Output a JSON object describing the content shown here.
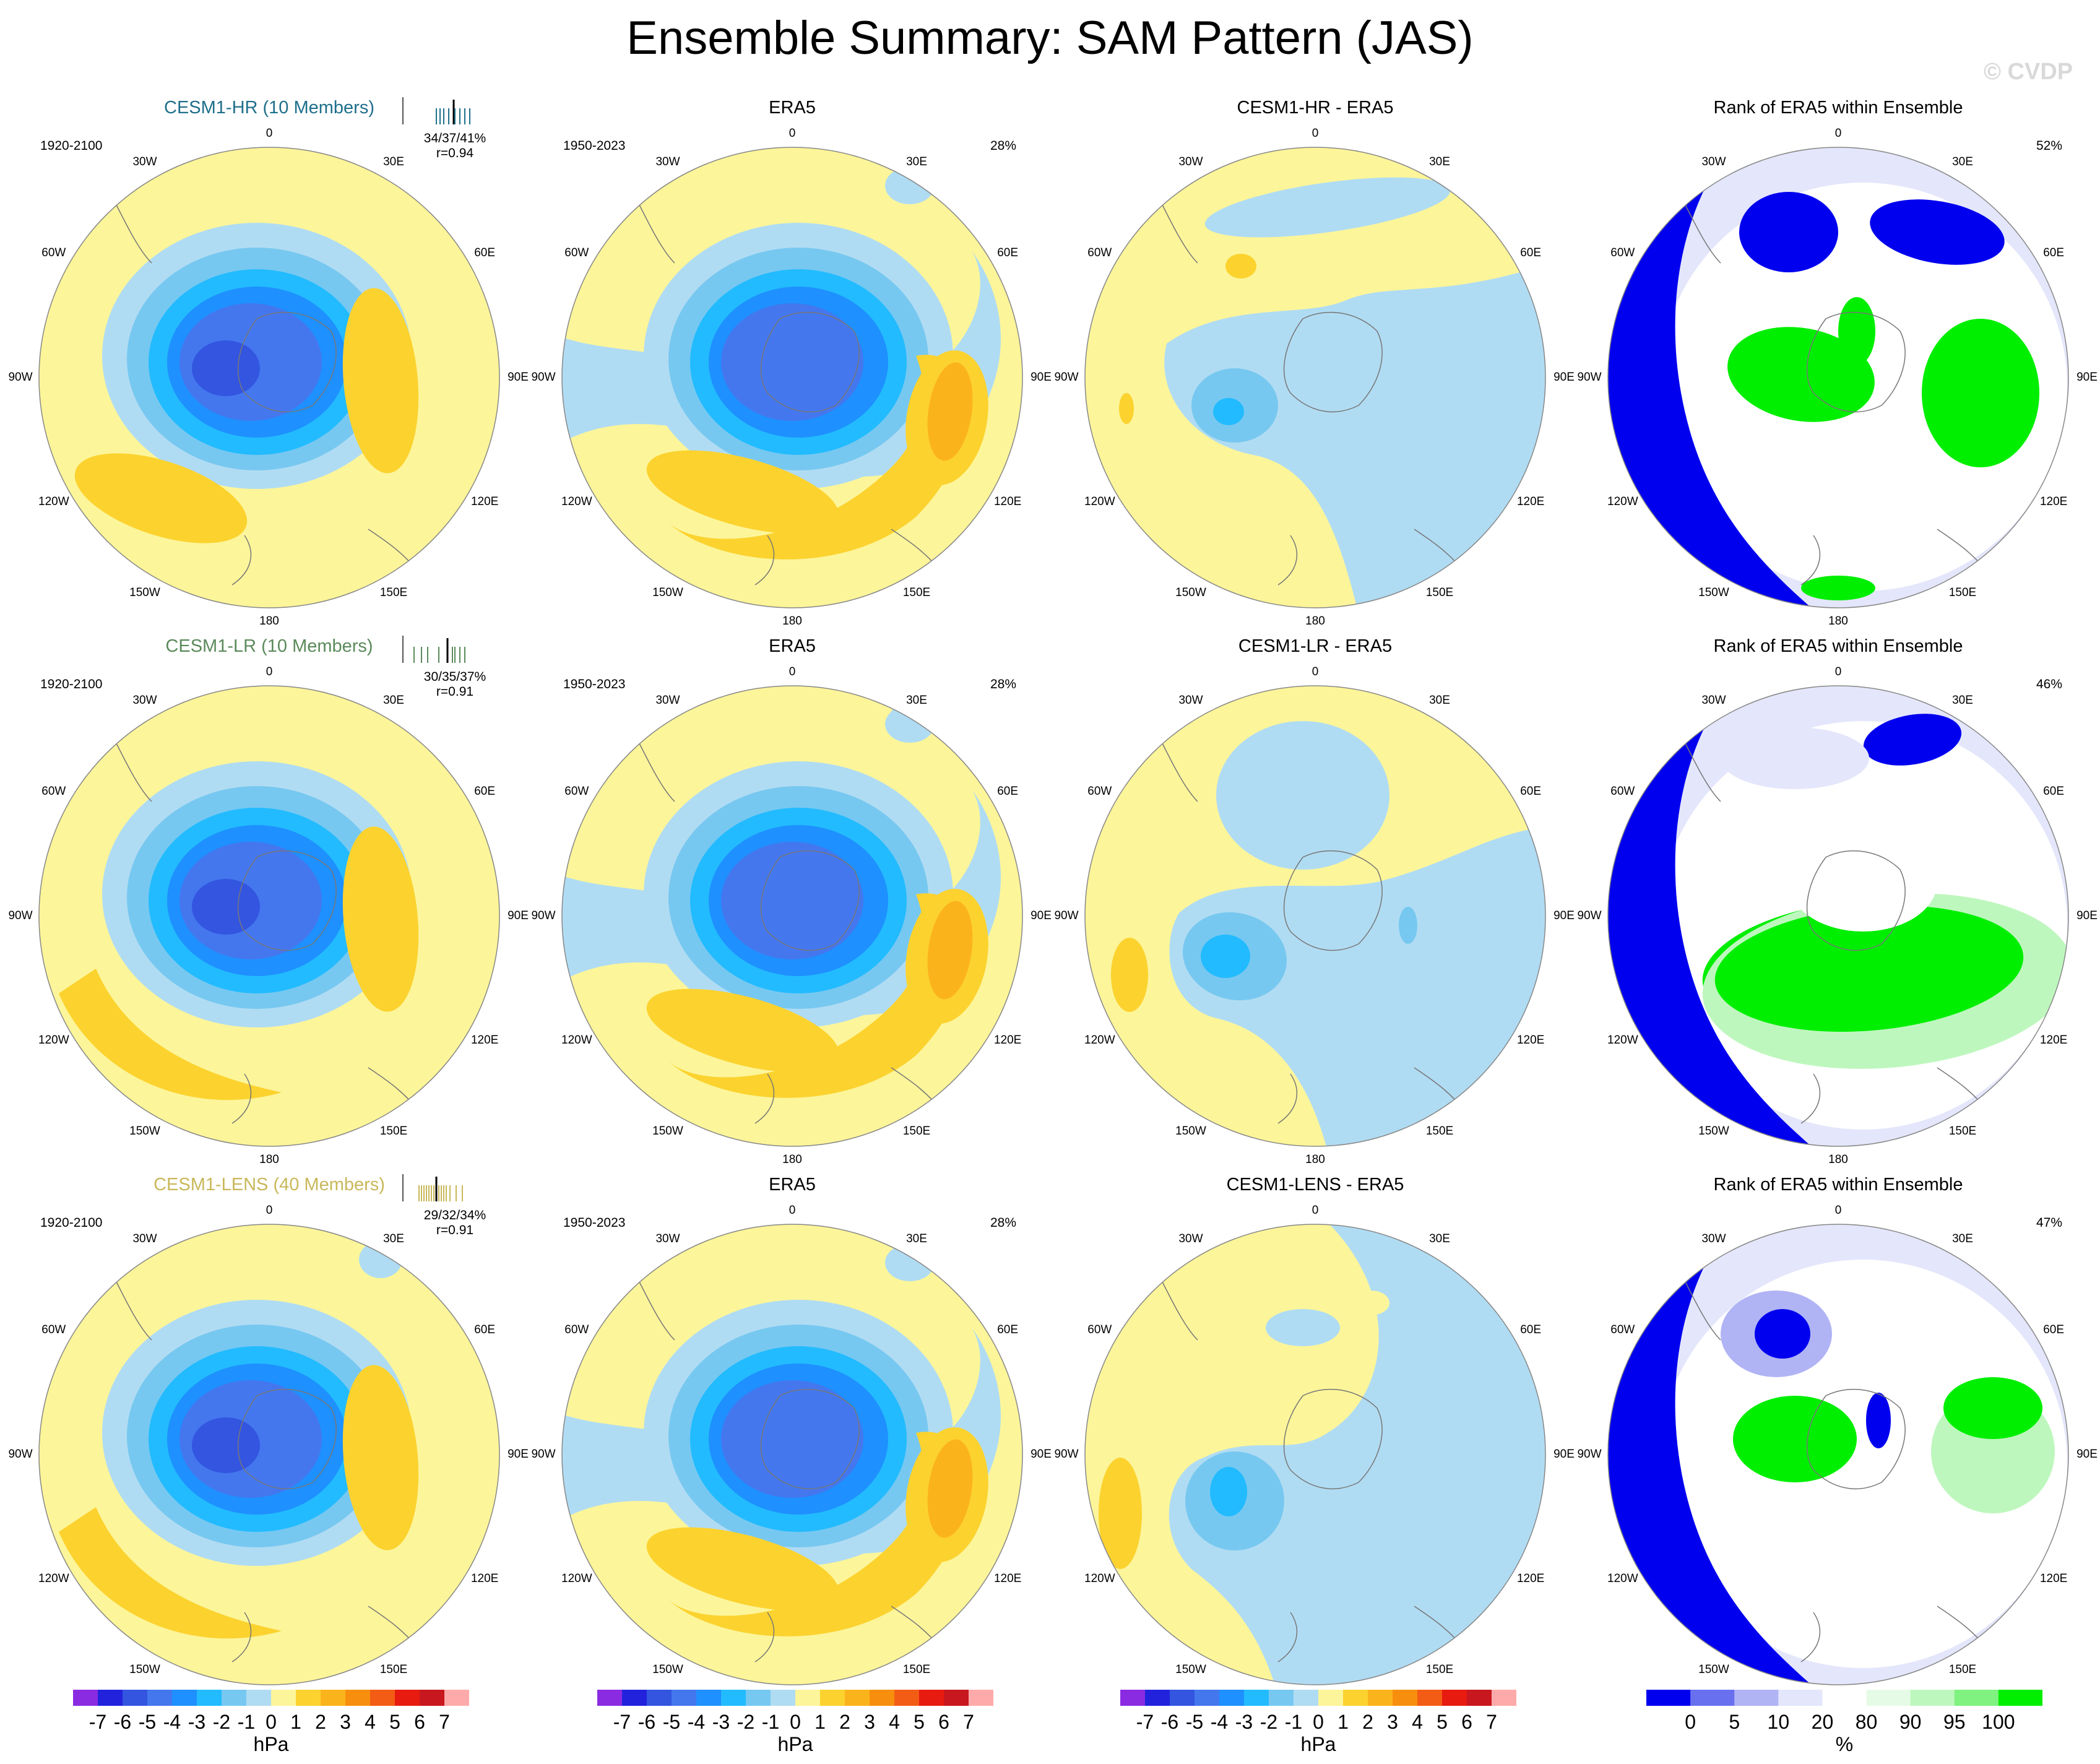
{
  "title": "Ensemble Summary: SAM Pattern (JAS)",
  "watermark": "© CVDP",
  "colors": {
    "land_outline": "#777777",
    "pattern_levels": [
      "#8a2be2",
      "#2222dd",
      "#3355e0",
      "#4477ee",
      "#1e90ff",
      "#22bbff",
      "#77c8f0",
      "#b0dcf3",
      "#fcf59a",
      "#fcd22e",
      "#fbb31c",
      "#f88e0e",
      "#f35c14",
      "#e81b10",
      "#c8171e",
      "#ffaaaa"
    ],
    "rank_levels": [
      "#0000ee",
      "#6870f0",
      "#b0b4f5",
      "#e4e6fb",
      "#ffffff",
      "#e6fbe6",
      "#bef7be",
      "#7ff27f",
      "#00ee00"
    ]
  },
  "pattern_colorbar": {
    "ticks": [
      "-7",
      "-6",
      "-5",
      "-4",
      "-3",
      "-2",
      "-1",
      "0",
      "1",
      "2",
      "3",
      "4",
      "5",
      "6",
      "7"
    ],
    "unit": "hPa"
  },
  "rank_colorbar": {
    "ticks": [
      "0",
      "5",
      "10",
      "20",
      "80",
      "90",
      "95",
      "100"
    ],
    "unit": "%"
  },
  "longitude_labels": {
    "top": "0",
    "bottom": "180",
    "w30": "30W",
    "w60": "60W",
    "w90": "90W",
    "w120": "120W",
    "w150": "150W",
    "e30": "30E",
    "e60": "60E",
    "e90": "90E",
    "e120": "120E",
    "e150": "150E"
  },
  "rows": [
    {
      "model": {
        "title": "CESM1-HR (10 Members)",
        "title_color": "#1f6f8b",
        "period": "1920-2100",
        "stats": "34/37/41%",
        "corr": "r=0.94",
        "hist_color": "#1f6f8b"
      },
      "obs": {
        "title": "ERA5",
        "period": "1950-2023",
        "pct": "28%"
      },
      "diff": {
        "title": "CESM1-HR - ERA5"
      },
      "rank": {
        "title": "Rank of ERA5 within Ensemble",
        "pct": "52%"
      }
    },
    {
      "model": {
        "title": "CESM1-LR (10 Members)",
        "title_color": "#5b8a5b",
        "period": "1920-2100",
        "stats": "30/35/37%",
        "corr": "r=0.91",
        "hist_color": "#5b8a5b"
      },
      "obs": {
        "title": "ERA5",
        "period": "1950-2023",
        "pct": "28%"
      },
      "diff": {
        "title": "CESM1-LR - ERA5"
      },
      "rank": {
        "title": "Rank of ERA5 within Ensemble",
        "pct": "46%"
      }
    },
    {
      "model": {
        "title": "CESM1-LENS (40 Members)",
        "title_color": "#c9b85a",
        "period": "1920-2100",
        "stats": "29/32/34%",
        "corr": "r=0.91",
        "hist_color": "#c9b85a"
      },
      "obs": {
        "title": "ERA5",
        "period": "1950-2023",
        "pct": "28%"
      },
      "diff": {
        "title": "CESM1-LENS - ERA5"
      },
      "rank": {
        "title": "Rank of ERA5 within Ensemble",
        "pct": "47%"
      }
    }
  ]
}
